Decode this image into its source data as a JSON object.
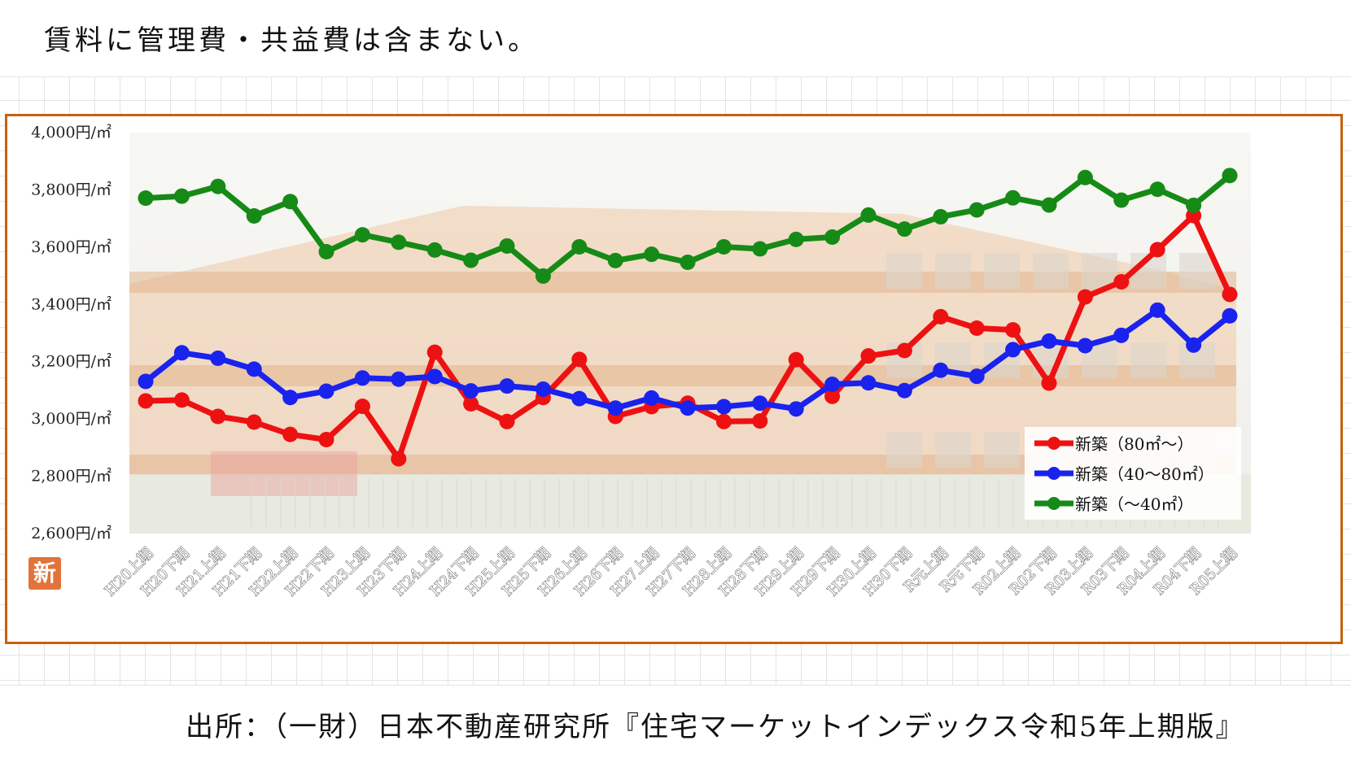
{
  "header": {
    "note": "賃料に管理費・共益費は含まない。"
  },
  "footer": {
    "source": "出所：（一財）日本不動産研究所『住宅マーケットインデックス令和5年上期版』"
  },
  "badge": {
    "text": "新"
  },
  "colors": {
    "frame": "#c5620e",
    "badge": "#e2733a"
  },
  "chart_data": {
    "type": "line",
    "title": "",
    "xlabel": "",
    "ylabel": "",
    "ylim": [
      2600,
      4000
    ],
    "yticks": [
      {
        "value": 2600,
        "label": "2,600円/㎡"
      },
      {
        "value": 2800,
        "label": "2,800円/㎡"
      },
      {
        "value": 3000,
        "label": "3,000円/㎡"
      },
      {
        "value": 3200,
        "label": "3,200円/㎡"
      },
      {
        "value": 3400,
        "label": "3,400円/㎡"
      },
      {
        "value": 3600,
        "label": "3,600円/㎡"
      },
      {
        "value": 3800,
        "label": "3,800円/㎡"
      },
      {
        "value": 4000,
        "label": "4,000円/㎡"
      }
    ],
    "grid": false,
    "legend": "bottom-right",
    "categories": [
      "H20上期",
      "H20下期",
      "H21上期",
      "H21下期",
      "H22上期",
      "H22下期",
      "H23上期",
      "H23下期",
      "H24上期",
      "H24下期",
      "H25上期",
      "H25下期",
      "H26上期",
      "H26下期",
      "H27上期",
      "H27下期",
      "H28上期",
      "H28下期",
      "H29上期",
      "H29下期",
      "H30上期",
      "H30下期",
      "R元上期",
      "R元下期",
      "R02上期",
      "R02下期",
      "R03上期",
      "R03下期",
      "R04上期",
      "R04下期",
      "R05上期"
    ],
    "series": [
      {
        "name": "新築（80㎡～）",
        "color": "#ee1111",
        "values": [
          3063,
          3066,
          3009,
          2989,
          2946,
          2928,
          3044,
          2861,
          3233,
          3053,
          2991,
          3075,
          3208,
          3009,
          3043,
          3055,
          2991,
          2993,
          3207,
          3079,
          3220,
          3239,
          3357,
          3317,
          3311,
          3125,
          3426,
          3479,
          3591,
          3710,
          3435
        ]
      },
      {
        "name": "新築（40～80㎡）",
        "color": "#1a22ee",
        "values": [
          3131,
          3231,
          3212,
          3174,
          3075,
          3097,
          3143,
          3139,
          3148,
          3098,
          3115,
          3104,
          3071,
          3038,
          3073,
          3038,
          3043,
          3055,
          3035,
          3121,
          3126,
          3099,
          3170,
          3149,
          3242,
          3272,
          3256,
          3292,
          3380,
          3258,
          3360
        ]
      },
      {
        "name": "新築（～40㎡）",
        "color": "#168a16",
        "values": [
          3771,
          3778,
          3812,
          3709,
          3759,
          3584,
          3643,
          3617,
          3590,
          3554,
          3604,
          3499,
          3601,
          3553,
          3575,
          3547,
          3601,
          3594,
          3627,
          3635,
          3712,
          3663,
          3706,
          3730,
          3772,
          3747,
          3843,
          3764,
          3802,
          3746,
          3850
        ]
      }
    ]
  }
}
